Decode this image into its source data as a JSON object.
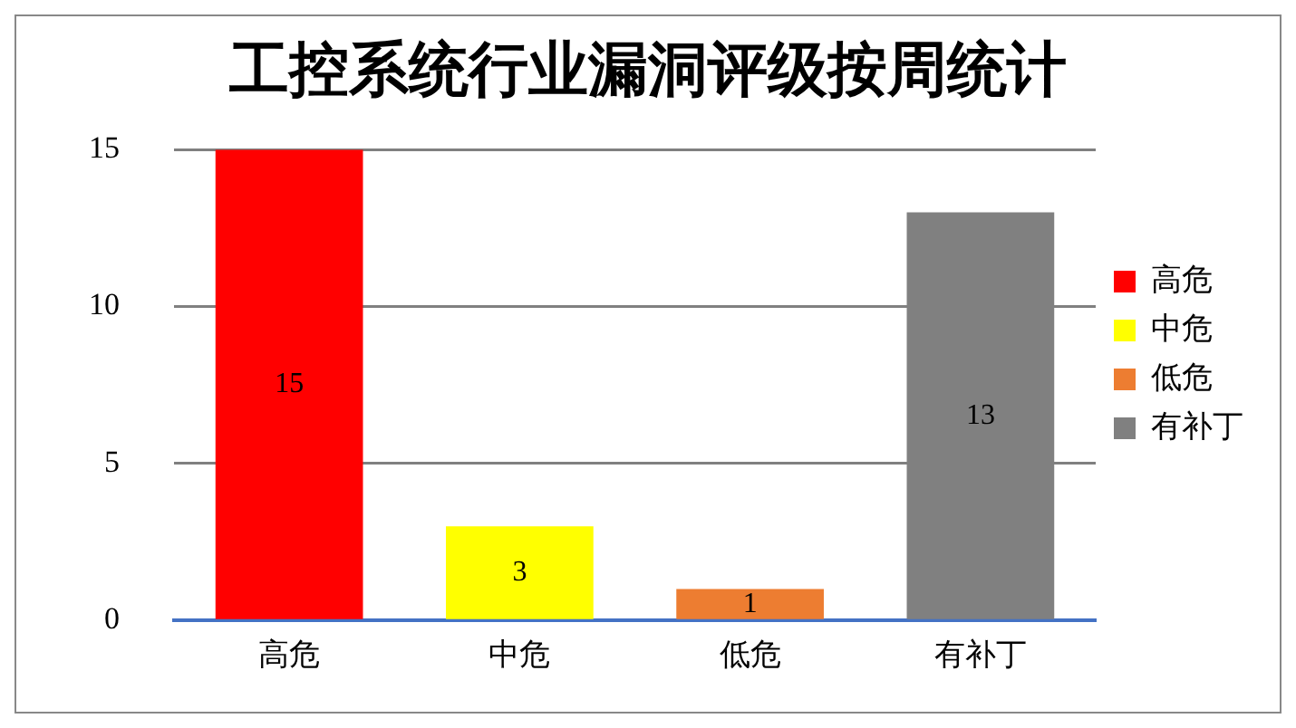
{
  "chart_data": {
    "type": "bar",
    "title": "工控系统行业漏洞评级按周统计",
    "categories": [
      "高危",
      "中危",
      "低危",
      "有补丁"
    ],
    "series": [
      {
        "name": "高危",
        "color": "#ff0000",
        "values": [
          15,
          null,
          null,
          null
        ]
      },
      {
        "name": "中危",
        "color": "#ffff00",
        "values": [
          null,
          3,
          null,
          null
        ]
      },
      {
        "name": "低危",
        "color": "#ed7d31",
        "values": [
          null,
          null,
          1,
          null
        ]
      },
      {
        "name": "有补丁",
        "color": "#808080",
        "values": [
          null,
          null,
          null,
          13
        ]
      }
    ],
    "stacked": true,
    "ylim": [
      0,
      15
    ],
    "yticks": [
      0,
      5,
      10,
      15
    ],
    "grid": "y",
    "legend": "right",
    "data_labels": true
  }
}
